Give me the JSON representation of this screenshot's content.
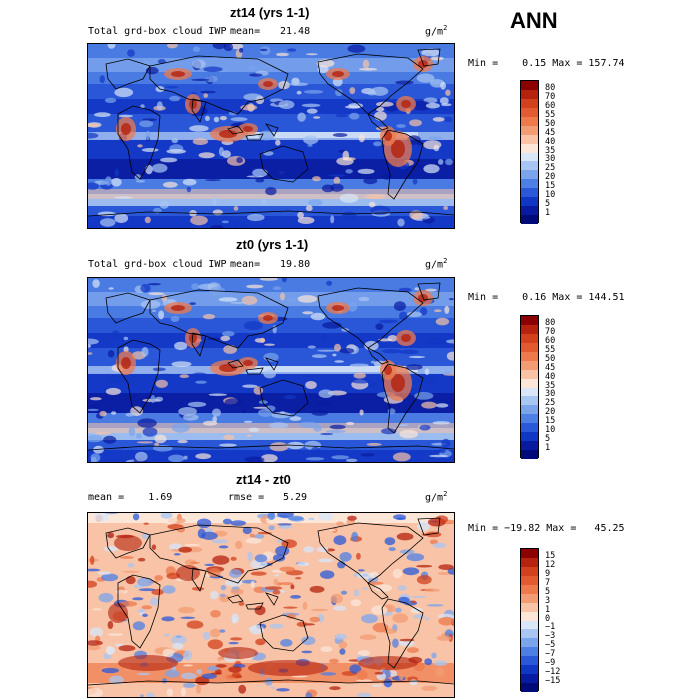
{
  "season": "ANN",
  "unit_base": "g/m",
  "unit_exp": "2",
  "panels": [
    {
      "title": "zt14 (yrs 1-1)",
      "left_label": "Total grd-box cloud IWP",
      "stat_label": "mean=",
      "stat_value": "21.48",
      "minmax": "Min =    0.15 Max = 157.74"
    },
    {
      "title": "zt0 (yrs 1-1)",
      "left_label": "Total grd-box cloud IWP",
      "stat_label": "mean=",
      "stat_value": "19.80",
      "minmax": "Min =    0.16 Max = 144.51"
    },
    {
      "title": "zt14 - zt0",
      "left_label": "mean =    1.69",
      "stat_label": "rmse =",
      "stat_value": "5.29",
      "minmax": "Min = −19.82 Max =   45.25"
    }
  ],
  "colorbar_abs": {
    "labels": [
      "80",
      "70",
      "60",
      "55",
      "50",
      "45",
      "40",
      "35",
      "30",
      "25",
      "20",
      "15",
      "10",
      "5",
      "1"
    ],
    "colors": [
      "#8b0000",
      "#b5220e",
      "#d2401c",
      "#e35a2e",
      "#ee7a4c",
      "#f39c74",
      "#f8c3a6",
      "#fbe6d8",
      "#d8e6f8",
      "#a9c6f2",
      "#7ba4ec",
      "#4d7fe4",
      "#2a58d8",
      "#1236c4",
      "#081aa0",
      "#000a78"
    ]
  },
  "colorbar_diff": {
    "labels": [
      "15",
      "12",
      "9",
      "7",
      "5",
      "3",
      "1",
      "0",
      "−1",
      "−3",
      "−5",
      "−7",
      "−9",
      "−12",
      "−15"
    ],
    "colors": [
      "#8b0000",
      "#b5220e",
      "#d2401c",
      "#e35a2e",
      "#ee7a4c",
      "#f39c74",
      "#f8c3a6",
      "#fbe6d8",
      "#d8e6f8",
      "#a9c6f2",
      "#7ba4ec",
      "#4d7fe4",
      "#2a58d8",
      "#1236c4",
      "#081aa0",
      "#000a78"
    ]
  }
}
